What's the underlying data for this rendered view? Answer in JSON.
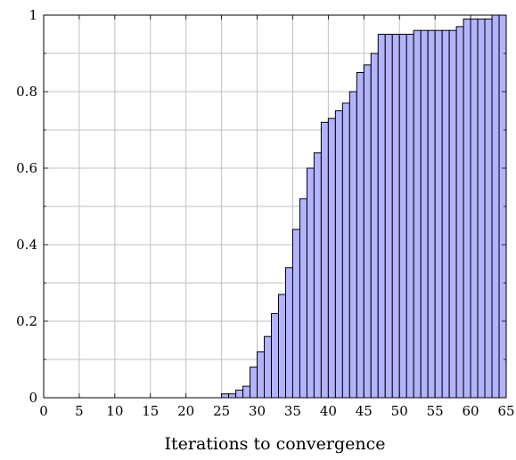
{
  "chart_data": {
    "type": "bar",
    "title": "",
    "xlabel": "Iterations to convergence",
    "ylabel": "",
    "xlim": [
      0,
      65
    ],
    "ylim": [
      0,
      1
    ],
    "grid": true,
    "bar_color": "#b3b3ff",
    "bar_edge_color": "#000000",
    "x_ticks": [
      "0",
      "5",
      "10",
      "15",
      "20",
      "25",
      "30",
      "35",
      "40",
      "45",
      "50",
      "55",
      "60",
      "65"
    ],
    "y_ticks": [
      "0",
      "0.2",
      "0.4",
      "0.6",
      "0.8",
      "1"
    ],
    "x": [
      25,
      26,
      27,
      28,
      29,
      30,
      31,
      32,
      33,
      34,
      35,
      36,
      37,
      38,
      39,
      40,
      41,
      42,
      43,
      44,
      45,
      46,
      47,
      48,
      49,
      50,
      51,
      52,
      53,
      54,
      55,
      56,
      57,
      58,
      59,
      60,
      61,
      62,
      63,
      64
    ],
    "values": [
      0.01,
      0.01,
      0.02,
      0.03,
      0.08,
      0.12,
      0.16,
      0.22,
      0.27,
      0.34,
      0.44,
      0.52,
      0.6,
      0.64,
      0.72,
      0.73,
      0.75,
      0.77,
      0.8,
      0.85,
      0.87,
      0.9,
      0.95,
      0.95,
      0.95,
      0.95,
      0.95,
      0.96,
      0.96,
      0.96,
      0.96,
      0.96,
      0.96,
      0.97,
      0.99,
      0.99,
      0.99,
      0.99,
      1.0,
      1.0
    ]
  }
}
